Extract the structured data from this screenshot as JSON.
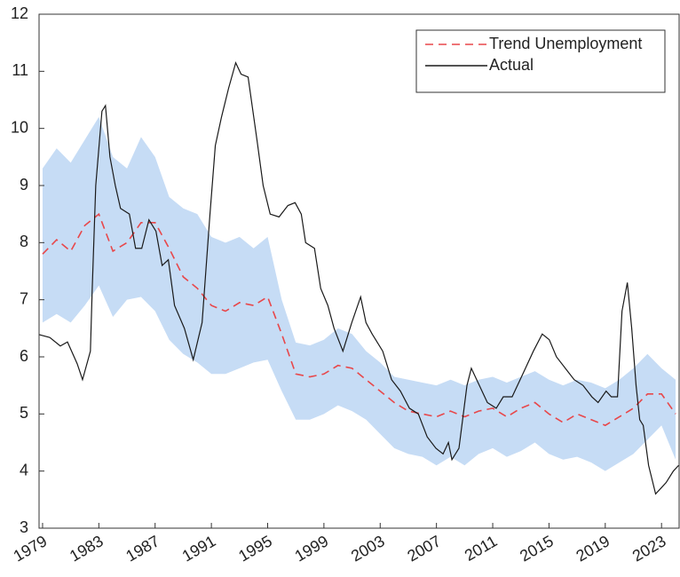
{
  "chart_data": {
    "type": "line",
    "xlim": [
      1978.75,
      2024.25
    ],
    "xticks": [
      1979,
      1983,
      1987,
      1991,
      1995,
      1999,
      2003,
      2007,
      2011,
      2015,
      2019,
      2023
    ],
    "ylim": [
      3,
      12
    ],
    "yticks": [
      3,
      4,
      5,
      6,
      7,
      8,
      9,
      10,
      11,
      12
    ],
    "legend": "upper right",
    "band": {
      "color": "#c6dcf5",
      "x": [
        1979,
        1980,
        1981,
        1982,
        1983,
        1984,
        1985,
        1986,
        1987,
        1988,
        1989,
        1990,
        1991,
        1992,
        1993,
        1994,
        1995,
        1996,
        1997,
        1998,
        1999,
        2000,
        2001,
        2002,
        2003,
        2004,
        2005,
        2006,
        2007,
        2008,
        2009,
        2010,
        2011,
        2012,
        2013,
        2014,
        2015,
        2016,
        2017,
        2018,
        2019,
        2020,
        2021,
        2022,
        2023,
        2024
      ],
      "upper": [
        9.3,
        9.65,
        9.4,
        9.8,
        10.2,
        9.5,
        9.3,
        9.85,
        9.5,
        8.8,
        8.6,
        8.5,
        8.1,
        8.0,
        8.1,
        7.9,
        8.1,
        7.0,
        6.25,
        6.2,
        6.3,
        6.5,
        6.4,
        6.1,
        5.9,
        5.65,
        5.6,
        5.55,
        5.5,
        5.6,
        5.5,
        5.6,
        5.65,
        5.55,
        5.65,
        5.75,
        5.6,
        5.5,
        5.6,
        5.55,
        5.45,
        5.6,
        5.8,
        6.05,
        5.8,
        5.6
      ],
      "lower": [
        6.6,
        6.75,
        6.6,
        6.9,
        7.25,
        6.7,
        7.0,
        7.05,
        6.8,
        6.3,
        6.05,
        5.9,
        5.7,
        5.7,
        5.8,
        5.9,
        5.95,
        5.4,
        4.9,
        4.9,
        5.0,
        5.15,
        5.05,
        4.9,
        4.65,
        4.4,
        4.3,
        4.25,
        4.1,
        4.25,
        4.1,
        4.3,
        4.4,
        4.25,
        4.35,
        4.5,
        4.3,
        4.2,
        4.25,
        4.15,
        4.0,
        4.15,
        4.3,
        4.55,
        4.8,
        4.2
      ]
    },
    "series": [
      {
        "name": "Trend Unemployment",
        "color": "#e8474a",
        "linestyle": "dashed",
        "x": [
          1979,
          1980,
          1981,
          1982,
          1983,
          1984,
          1985,
          1986,
          1987,
          1988,
          1989,
          1990,
          1991,
          1992,
          1993,
          1994,
          1995,
          1996,
          1997,
          1998,
          1999,
          2000,
          2001,
          2002,
          2003,
          2004,
          2005,
          2006,
          2007,
          2008,
          2009,
          2010,
          2011,
          2012,
          2013,
          2014,
          2015,
          2016,
          2017,
          2018,
          2019,
          2020,
          2021,
          2022,
          2023,
          2024
        ],
        "values": [
          7.8,
          8.05,
          7.85,
          8.3,
          8.5,
          7.85,
          8.0,
          8.35,
          8.35,
          7.9,
          7.4,
          7.2,
          6.9,
          6.8,
          6.95,
          6.9,
          7.05,
          6.4,
          5.7,
          5.65,
          5.7,
          5.85,
          5.8,
          5.6,
          5.4,
          5.2,
          5.05,
          5.0,
          4.95,
          5.05,
          4.95,
          5.05,
          5.1,
          4.95,
          5.1,
          5.2,
          5.0,
          4.85,
          5.0,
          4.9,
          4.8,
          4.95,
          5.1,
          5.35,
          5.35,
          5.0
        ]
      },
      {
        "name": "Actual",
        "color": "#1a1a1a",
        "linestyle": "solid",
        "x": [
          1978.75,
          1979.51,
          1980.26,
          1980.77,
          1981.46,
          1981.84,
          1982.4,
          1982.53,
          1982.78,
          1983.22,
          1983.47,
          1983.79,
          1984.17,
          1984.54,
          1985.17,
          1985.61,
          1986.05,
          1986.56,
          1987.06,
          1987.5,
          1987.94,
          1988.38,
          1989.08,
          1989.71,
          1990.34,
          1990.9,
          1991.28,
          1991.72,
          1992.22,
          1992.73,
          1993.11,
          1993.61,
          1994.24,
          1994.68,
          1995.18,
          1995.81,
          1996.44,
          1996.95,
          1997.39,
          1997.7,
          1998.33,
          1998.77,
          1999.28,
          1999.72,
          2000.35,
          2000.98,
          2001.61,
          2001.99,
          2002.43,
          2003.18,
          2003.81,
          2004.44,
          2005.08,
          2005.71,
          2006.34,
          2006.96,
          2007.47,
          2007.85,
          2008.1,
          2008.6,
          2009.17,
          2009.48,
          2009.86,
          2010.62,
          2011.25,
          2011.75,
          2012.38,
          2013.14,
          2013.89,
          2014.52,
          2015.02,
          2015.53,
          2016.16,
          2016.79,
          2017.42,
          2018.05,
          2018.49,
          2019.06,
          2019.43,
          2019.87,
          2020.19,
          2020.57,
          2020.88,
          2021.19,
          2021.45,
          2021.7,
          2022.08,
          2022.58,
          2022.96,
          2023.33,
          2023.84,
          2024.22
        ],
        "values": [
          6.39,
          6.34,
          6.19,
          6.26,
          5.88,
          5.6,
          6.1,
          7.2,
          9.0,
          10.3,
          10.4,
          9.5,
          9.0,
          8.6,
          8.5,
          7.9,
          7.9,
          8.4,
          8.2,
          7.6,
          7.7,
          6.9,
          6.5,
          5.95,
          6.6,
          8.5,
          9.7,
          10.2,
          10.7,
          11.15,
          10.95,
          10.9,
          9.8,
          9.0,
          8.5,
          8.45,
          8.65,
          8.7,
          8.5,
          8.0,
          7.9,
          7.2,
          6.9,
          6.5,
          6.1,
          6.6,
          7.05,
          6.6,
          6.4,
          6.1,
          5.6,
          5.4,
          5.1,
          5.0,
          4.6,
          4.4,
          4.3,
          4.5,
          4.2,
          4.4,
          5.5,
          5.8,
          5.6,
          5.2,
          5.1,
          5.3,
          5.3,
          5.7,
          6.1,
          6.4,
          6.3,
          6.0,
          5.8,
          5.6,
          5.5,
          5.3,
          5.2,
          5.4,
          5.3,
          5.3,
          6.8,
          7.3,
          6.5,
          5.5,
          4.9,
          4.8,
          4.1,
          3.6,
          3.7,
          3.8,
          4.0,
          4.1
        ]
      }
    ]
  }
}
